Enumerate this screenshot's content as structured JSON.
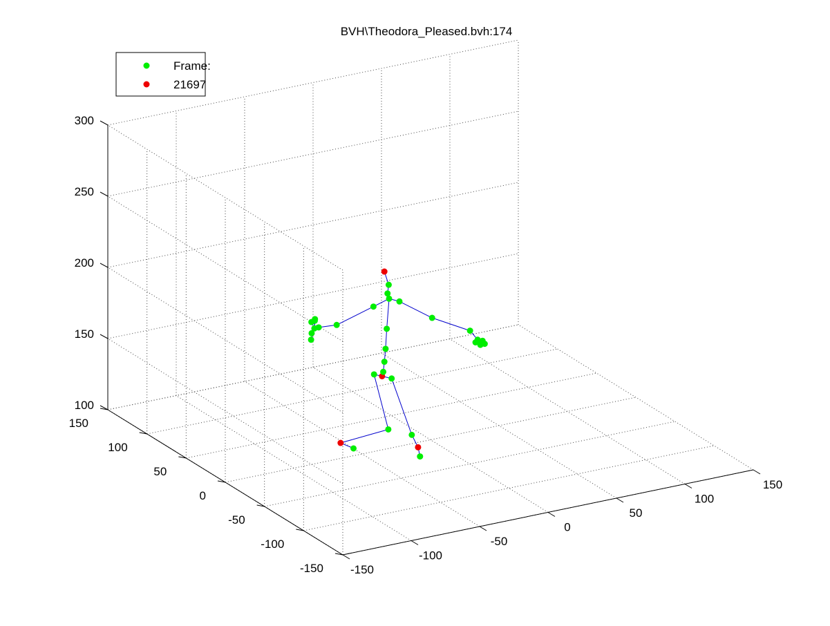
{
  "window": {
    "title": "BVH\\Theodora_Pleased.bvh:174"
  },
  "chart_data": {
    "type": "scatter",
    "projection": "3d",
    "title": "BVH\\Theodora_Pleased.bvh:174",
    "xlabel": "",
    "ylabel": "",
    "zlabel": "",
    "xlim": [
      -150,
      150
    ],
    "ylim": [
      -150,
      150
    ],
    "zlim": [
      100,
      300
    ],
    "xticks": [
      -150,
      -100,
      -50,
      0,
      50,
      100,
      150
    ],
    "yticks": [
      -150,
      -100,
      -50,
      0,
      50,
      100,
      150
    ],
    "zticks": [
      100,
      150,
      200,
      250,
      300
    ],
    "xtick_labels": [
      "-150",
      "-100",
      "-50",
      "0",
      "50",
      "100",
      "150"
    ],
    "ytick_labels": [
      "-150",
      "-100",
      "-50",
      "0",
      "50",
      "100",
      "150"
    ],
    "ztick_labels": [
      "100",
      "150",
      "200",
      "250",
      "300"
    ],
    "grid": true,
    "legend": {
      "location": "top-left",
      "entries": [
        {
          "label": "Frame:",
          "color": "#00ee00"
        },
        {
          "label": "21697",
          "color": "#ee0000"
        }
      ]
    },
    "colors": {
      "joint": "#00ee00",
      "end_site": "#ee0000",
      "bone": "#0000cc",
      "grid": "#444444"
    },
    "joints": [
      {
        "name": "hips",
        "x": -32,
        "y": 6,
        "z": 149,
        "role": "end_site"
      },
      {
        "name": "spine",
        "x": -30,
        "y": 8,
        "z": 151,
        "role": "joint"
      },
      {
        "name": "spine1",
        "x": -28,
        "y": 10,
        "z": 157,
        "role": "joint"
      },
      {
        "name": "spine2",
        "x": -26,
        "y": 12,
        "z": 165,
        "role": "joint"
      },
      {
        "name": "spine3",
        "x": -24,
        "y": 14,
        "z": 178,
        "role": "joint"
      },
      {
        "name": "neck",
        "x": -20,
        "y": 18,
        "z": 197,
        "role": "joint"
      },
      {
        "name": "neck1",
        "x": -20,
        "y": 20,
        "z": 200,
        "role": "joint"
      },
      {
        "name": "head",
        "x": -18,
        "y": 22,
        "z": 205,
        "role": "joint"
      },
      {
        "name": "head_end",
        "x": -20,
        "y": 24,
        "z": 214,
        "role": "end_site"
      },
      {
        "name": "l_shoulder",
        "x": -13,
        "y": 17,
        "z": 194,
        "role": "joint"
      },
      {
        "name": "l_arm",
        "x": 8,
        "y": 12,
        "z": 180,
        "role": "joint"
      },
      {
        "name": "l_forearm",
        "x": 30,
        "y": 2,
        "z": 170,
        "role": "joint"
      },
      {
        "name": "l_hand",
        "x": 35,
        "y": 1,
        "z": 163,
        "role": "joint"
      },
      {
        "name": "l_finger1",
        "x": 34,
        "y": 2,
        "z": 161,
        "role": "joint"
      },
      {
        "name": "l_finger2",
        "x": 36,
        "y": 1,
        "z": 161,
        "role": "joint"
      },
      {
        "name": "l_finger3",
        "x": 38,
        "y": 0,
        "z": 162,
        "role": "joint"
      },
      {
        "name": "l_finger4",
        "x": 39,
        "y": -1,
        "z": 160,
        "role": "joint"
      },
      {
        "name": "l_finger5",
        "x": 37,
        "y": 1,
        "z": 159,
        "role": "joint"
      },
      {
        "name": "r_shoulder",
        "x": -28,
        "y": 24,
        "z": 191,
        "role": "joint"
      },
      {
        "name": "r_arm",
        "x": -48,
        "y": 36,
        "z": 178,
        "role": "joint"
      },
      {
        "name": "r_forearm",
        "x": -60,
        "y": 38,
        "z": 178,
        "role": "joint"
      },
      {
        "name": "r_hand",
        "x": -62,
        "y": 40,
        "z": 177,
        "role": "joint"
      },
      {
        "name": "r_finger1",
        "x": -63,
        "y": 42,
        "z": 181,
        "role": "joint"
      },
      {
        "name": "r_finger2",
        "x": -61,
        "y": 41,
        "z": 183,
        "role": "joint"
      },
      {
        "name": "r_finger3",
        "x": -60,
        "y": 43,
        "z": 181,
        "role": "joint"
      },
      {
        "name": "r_finger4",
        "x": -64,
        "y": 40,
        "z": 174,
        "role": "joint"
      },
      {
        "name": "r_finger5",
        "x": -65,
        "y": 39,
        "z": 170,
        "role": "joint"
      },
      {
        "name": "l_upleg",
        "x": -31,
        "y": 18,
        "z": 146,
        "role": "joint"
      },
      {
        "name": "l_leg",
        "x": -24,
        "y": 12,
        "z": 108,
        "role": "joint"
      },
      {
        "name": "l_foot",
        "x": -52,
        "y": 24,
        "z": 100,
        "role": "end_site"
      },
      {
        "name": "l_toe",
        "x": -46,
        "y": 18,
        "z": 97,
        "role": "joint"
      },
      {
        "name": "r_upleg",
        "x": -25,
        "y": 6,
        "z": 146,
        "role": "joint"
      },
      {
        "name": "r_leg",
        "x": -16,
        "y": -4,
        "z": 108,
        "role": "joint"
      },
      {
        "name": "r_foot",
        "x": -16,
        "y": -12,
        "z": 102,
        "role": "end_site"
      },
      {
        "name": "r_toe",
        "x": -18,
        "y": -18,
        "z": 98,
        "role": "joint"
      }
    ],
    "bones": [
      [
        "hips",
        "spine"
      ],
      [
        "spine",
        "spine1"
      ],
      [
        "spine1",
        "spine2"
      ],
      [
        "spine2",
        "spine3"
      ],
      [
        "spine3",
        "neck"
      ],
      [
        "neck",
        "neck1"
      ],
      [
        "neck1",
        "head"
      ],
      [
        "head",
        "head_end"
      ],
      [
        "neck",
        "l_shoulder"
      ],
      [
        "l_shoulder",
        "l_arm"
      ],
      [
        "l_arm",
        "l_forearm"
      ],
      [
        "l_forearm",
        "l_hand"
      ],
      [
        "l_hand",
        "l_finger1"
      ],
      [
        "l_hand",
        "l_finger2"
      ],
      [
        "l_hand",
        "l_finger3"
      ],
      [
        "l_hand",
        "l_finger4"
      ],
      [
        "l_hand",
        "l_finger5"
      ],
      [
        "neck",
        "r_shoulder"
      ],
      [
        "r_shoulder",
        "r_arm"
      ],
      [
        "r_arm",
        "r_forearm"
      ],
      [
        "r_forearm",
        "r_hand"
      ],
      [
        "r_hand",
        "r_finger1"
      ],
      [
        "r_hand",
        "r_finger2"
      ],
      [
        "r_hand",
        "r_finger3"
      ],
      [
        "r_hand",
        "r_finger4"
      ],
      [
        "r_hand",
        "r_finger5"
      ],
      [
        "hips",
        "l_upleg"
      ],
      [
        "l_upleg",
        "l_leg"
      ],
      [
        "l_leg",
        "l_foot"
      ],
      [
        "l_foot",
        "l_toe"
      ],
      [
        "hips",
        "r_upleg"
      ],
      [
        "r_upleg",
        "r_leg"
      ],
      [
        "r_leg",
        "r_foot"
      ],
      [
        "r_foot",
        "r_toe"
      ]
    ]
  }
}
